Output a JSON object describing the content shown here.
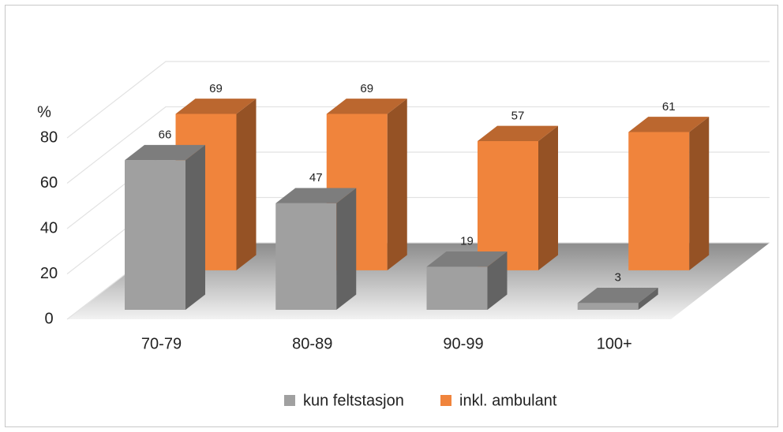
{
  "chart_data": {
    "type": "bar3d",
    "y_label": "%",
    "categories": [
      "70-79",
      "80-89",
      "90-99",
      "100+"
    ],
    "series": [
      {
        "name": "kun feltstasjon",
        "color": "#a0a0a0",
        "values": [
          66,
          47,
          19,
          3
        ]
      },
      {
        "name": "inkl. ambulant",
        "color": "#f0843c",
        "values": [
          69,
          69,
          57,
          61
        ]
      }
    ],
    "ylim": [
      0,
      80
    ],
    "yticks": [
      0,
      20,
      40,
      60,
      80
    ],
    "grid": true,
    "legend": "bottom"
  }
}
